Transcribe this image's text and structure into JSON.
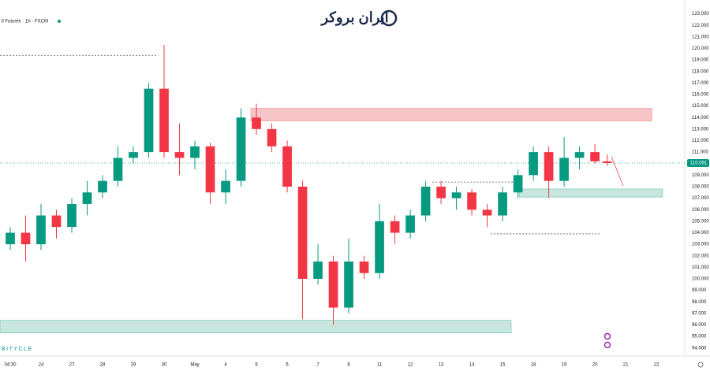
{
  "chart_data": {
    "type": "candlestick",
    "title": "ll Futures · 1h · FXCM",
    "logo_text": "ایران بروکر",
    "watermark": "BITYCLE",
    "up_color": "#089981",
    "down_color": "#f23645",
    "xlim": [
      -0.333,
      21.92
    ],
    "ylim": [
      93.3,
      124.2
    ],
    "xticks": [
      {
        "value": 0,
        "label": "04:30"
      },
      {
        "value": 1,
        "label": "24"
      },
      {
        "value": 2,
        "label": "27"
      },
      {
        "value": 3,
        "label": "28"
      },
      {
        "value": 4,
        "label": "29"
      },
      {
        "value": 5,
        "label": "30"
      },
      {
        "value": 6,
        "label": "May"
      },
      {
        "value": 7,
        "label": "4"
      },
      {
        "value": 8,
        "label": "5"
      },
      {
        "value": 9,
        "label": "6"
      },
      {
        "value": 10,
        "label": "7"
      },
      {
        "value": 11,
        "label": "8"
      },
      {
        "value": 12,
        "label": "11"
      },
      {
        "value": 13,
        "label": "12"
      },
      {
        "value": 14,
        "label": "13"
      },
      {
        "value": 15,
        "label": "14"
      },
      {
        "value": 16,
        "label": "15"
      },
      {
        "value": 17,
        "label": "18"
      },
      {
        "value": 18,
        "label": "19"
      },
      {
        "value": 19,
        "label": "20"
      },
      {
        "value": 20,
        "label": "21"
      },
      {
        "value": 21,
        "label": "22"
      }
    ],
    "yticks": [
      {
        "value": 94,
        "label": "94.000"
      },
      {
        "value": 95,
        "label": "95.000"
      },
      {
        "value": 96,
        "label": "96.000"
      },
      {
        "value": 97,
        "label": "97.000"
      },
      {
        "value": 98,
        "label": "98.000"
      },
      {
        "value": 99,
        "label": "99.000"
      },
      {
        "value": 100,
        "label": "100.000"
      },
      {
        "value": 101,
        "label": "101.000"
      },
      {
        "value": 102,
        "label": "102.000"
      },
      {
        "value": 103,
        "label": "103.000"
      },
      {
        "value": 104,
        "label": "104.000"
      },
      {
        "value": 105,
        "label": "105.000"
      },
      {
        "value": 106,
        "label": "106.000"
      },
      {
        "value": 107,
        "label": "107.000"
      },
      {
        "value": 108,
        "label": "108.000"
      },
      {
        "value": 109,
        "label": "109.000"
      },
      {
        "value": 110,
        "label": "110.000"
      },
      {
        "value": 111,
        "label": "111.000"
      },
      {
        "value": 112,
        "label": "112.000"
      },
      {
        "value": 113,
        "label": "113.000"
      },
      {
        "value": 114,
        "label": "114.000"
      },
      {
        "value": 115,
        "label": "115.000"
      },
      {
        "value": 116,
        "label": "116.000"
      },
      {
        "value": 117,
        "label": "117.000"
      },
      {
        "value": 118,
        "label": "118.000"
      },
      {
        "value": 119,
        "label": "119.000"
      },
      {
        "value": 120,
        "label": "120.000"
      },
      {
        "value": 121,
        "label": "121.000"
      },
      {
        "value": 122,
        "label": "122.000"
      },
      {
        "value": 123,
        "label": "123.000"
      }
    ],
    "last_price": {
      "value": 110.051,
      "label": "110.051"
    },
    "x": [
      0,
      0.5,
      1,
      1.5,
      2,
      2.5,
      3,
      3.5,
      4,
      4.5,
      5,
      5.5,
      6,
      6.5,
      7,
      7.5,
      8,
      8.5,
      9,
      9.5,
      10,
      10.5,
      11,
      11.5,
      12,
      12.5,
      13,
      13.5,
      14,
      14.5,
      15,
      15.5,
      16,
      16.5,
      17,
      17.5,
      18,
      18.5,
      19,
      19.4
    ],
    "open": [
      103,
      104,
      103,
      105.5,
      104.5,
      106.5,
      107.5,
      108.5,
      110.5,
      111,
      116.5,
      111,
      110.5,
      111.5,
      107.5,
      108.5,
      114,
      113,
      111.5,
      108,
      100,
      101.5,
      97.5,
      101.5,
      100.5,
      105,
      104,
      105.5,
      108,
      107,
      107.5,
      106,
      105.5,
      107.5,
      109,
      111,
      108.5,
      110.5,
      111,
      110.2
    ],
    "high": [
      104.5,
      105.5,
      106.5,
      106,
      107,
      108.5,
      109,
      111.5,
      111.5,
      117,
      120.3,
      113.5,
      112,
      111.8,
      109.5,
      114.8,
      115.2,
      113.5,
      112,
      108.5,
      103,
      102,
      103.5,
      102,
      106.5,
      105.5,
      106,
      108.5,
      108.5,
      108,
      107.8,
      106.5,
      108,
      109.5,
      111.5,
      111.5,
      112.3,
      111.5,
      111.7,
      110.8
    ],
    "low": [
      102.5,
      101.5,
      102.5,
      103.5,
      104,
      105.5,
      107,
      108,
      110,
      110.5,
      110.5,
      109,
      109.5,
      106.5,
      106.5,
      108,
      112.5,
      111,
      107.5,
      96.5,
      99.5,
      96,
      97,
      100,
      100,
      103,
      103.5,
      105,
      106.5,
      106,
      105.5,
      104.5,
      105,
      107,
      108.5,
      107,
      108,
      109.5,
      110,
      109.8
    ],
    "close": [
      104,
      103,
      105.5,
      104.5,
      106.5,
      107.5,
      108.5,
      110.5,
      111,
      116.5,
      111,
      110.5,
      111.5,
      107.5,
      108.5,
      114,
      113,
      111.5,
      108,
      100,
      101.5,
      97.5,
      101.5,
      100.5,
      105,
      104,
      105.5,
      108,
      107,
      107.5,
      106,
      105.5,
      107.5,
      109,
      111,
      108.5,
      110.5,
      111,
      110.2,
      110.051
    ],
    "zones": [
      {
        "color": "#f7c5c8",
        "x": [
          7.82,
          20.85
        ],
        "y": [
          113.7,
          114.8
        ]
      },
      {
        "color": "#c8e6dd",
        "x": [
          16.54,
          21.2
        ],
        "y": [
          107.1,
          107.8
        ]
      },
      {
        "color": "#c8e6dd",
        "x": [
          -0.333,
          16.28
        ],
        "y": [
          95.3,
          96.4
        ]
      }
    ],
    "levels": [
      {
        "x": [
          -0.333,
          4.8
        ],
        "y": 119.4
      },
      {
        "x": [
          13.72,
          16.46
        ],
        "y": 108.4
      },
      {
        "x": [
          15.62,
          19.15
        ],
        "y": 103.9
      }
    ],
    "arrow": {
      "x": [
        19.54,
        19.92
      ],
      "y": [
        110.6,
        108.05
      ]
    }
  }
}
